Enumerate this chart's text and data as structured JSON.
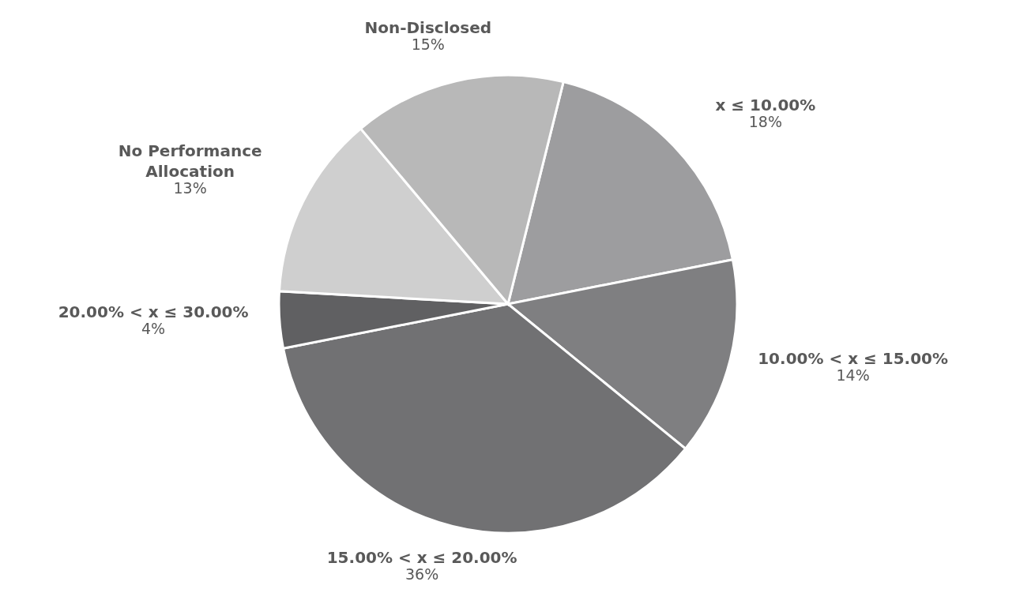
{
  "chart_data": {
    "type": "pie",
    "categories": [
      "x ≤ 10.00%",
      "10.00% < x ≤ 15.00%",
      "15.00% < x ≤ 20.00%",
      "20.00% < x ≤ 30.00%",
      "No Performance Allocation",
      "Non-Disclosed"
    ],
    "values": [
      18,
      14,
      36,
      4,
      13,
      15
    ],
    "value_labels": [
      "18%",
      "14%",
      "36%",
      "4%",
      "13%",
      "15%"
    ],
    "colors": [
      "#9d9d9f",
      "#7f7f81",
      "#717173",
      "#606062",
      "#cfcfcf",
      "#b8b8b8"
    ]
  }
}
